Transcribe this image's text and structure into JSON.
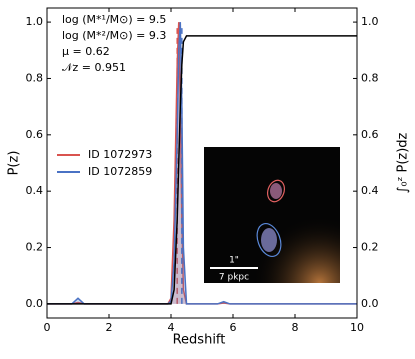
{
  "chart_data": {
    "type": "line",
    "xlabel": "Redshift",
    "ylabel": "P(z)",
    "y2label": "∫₀ᶻ P(z)dz",
    "annotations": [
      "log (M*¹/M⊙) = 9.5",
      "log (M*²/M⊙) = 9.3",
      "μ   = 0.62",
      "𝒩z = 0.951"
    ],
    "x": [
      0,
      0.8,
      1.0,
      1.2,
      3.9,
      4.0,
      4.1,
      4.2,
      4.25,
      4.3,
      4.35,
      4.4,
      4.5,
      5.5,
      5.7,
      5.9,
      10
    ],
    "series": [
      {
        "name": "ID 1072973",
        "color": "#d9534f",
        "marker_x": 4.2,
        "values": [
          0,
          0,
          0.005,
          0,
          0,
          0.02,
          0.3,
          0.85,
          1.0,
          0.7,
          0.3,
          0.05,
          0,
          0,
          0.003,
          0,
          0
        ]
      },
      {
        "name": "ID 1072859",
        "color": "#4a72c4",
        "marker_x": 4.35,
        "values": [
          0,
          0,
          0.02,
          0,
          0,
          0.01,
          0.15,
          0.6,
          0.9,
          1.0,
          0.7,
          0.2,
          0,
          0,
          0.008,
          0,
          0
        ]
      }
    ],
    "cumulative": {
      "color": "#000000",
      "axis": "y2",
      "values": [
        0,
        0,
        0,
        0,
        0,
        0,
        0.05,
        0.3,
        0.5,
        0.7,
        0.85,
        0.93,
        0.951,
        0.951,
        0.951,
        0.951,
        0.951
      ]
    },
    "xlim": [
      0,
      10
    ],
    "xticks": [
      0,
      2,
      4,
      6,
      8,
      10
    ],
    "ylim": [
      -0.05,
      1.05
    ],
    "yticks": [
      {
        "value": 0,
        "label": "0.0"
      },
      {
        "value": 0.2,
        "label": "0.2"
      },
      {
        "value": 0.4,
        "label": "0.4"
      },
      {
        "value": 0.6,
        "label": "0.6"
      },
      {
        "value": 0.8,
        "label": "0.8"
      },
      {
        "value": 1,
        "label": "1.0"
      }
    ],
    "y2lim": [
      -0.05,
      1.05
    ],
    "y2ticks": [
      {
        "value": 0,
        "label": "0.0"
      },
      {
        "value": 0.2,
        "label": "0.2"
      },
      {
        "value": 0.4,
        "label": "0.4"
      },
      {
        "value": 0.6,
        "label": "0.6"
      },
      {
        "value": 0.8,
        "label": "0.8"
      },
      {
        "value": 1,
        "label": "1.0"
      }
    ],
    "legend": "center left",
    "inset_labels": [
      "1\"",
      "7 pkpc"
    ]
  }
}
